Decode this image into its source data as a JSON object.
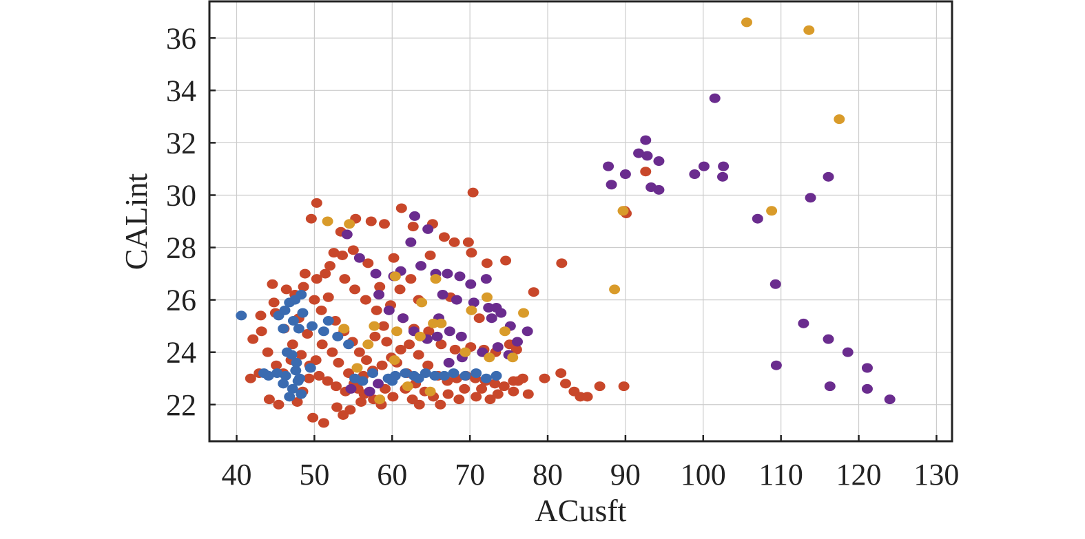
{
  "chart_data": {
    "type": "scatter",
    "title": "",
    "xlabel": "ACusft",
    "ylabel": "CALint",
    "xlim": [
      36.5,
      132
    ],
    "ylim": [
      20.6,
      37.4
    ],
    "xticks": [
      40,
      50,
      60,
      70,
      80,
      90,
      100,
      110,
      120,
      130
    ],
    "yticks": [
      22,
      24,
      26,
      28,
      30,
      32,
      34,
      36
    ],
    "xtick_labels": [
      "40",
      "50",
      "60",
      "70",
      "80",
      "90",
      "100",
      "110",
      "120",
      "130"
    ],
    "ytick_labels": [
      "22",
      "24",
      "26",
      "28",
      "30",
      "32",
      "34",
      "36"
    ],
    "grid": true,
    "legend": "none",
    "series": [
      {
        "color": "#C8472A",
        "points": [
          [
            50.3,
            29.7
          ],
          [
            49.6,
            29.1
          ],
          [
            55.3,
            29.1
          ],
          [
            53.4,
            28.6
          ],
          [
            57.3,
            29.0
          ],
          [
            59.0,
            28.9
          ],
          [
            61.2,
            29.5
          ],
          [
            62.7,
            28.8
          ],
          [
            65.2,
            28.9
          ],
          [
            66.7,
            28.4
          ],
          [
            68.0,
            28.2
          ],
          [
            69.8,
            28.2
          ],
          [
            70.2,
            27.8
          ],
          [
            70.4,
            30.1
          ],
          [
            72.2,
            27.4
          ],
          [
            74.6,
            27.5
          ],
          [
            81.8,
            27.4
          ],
          [
            78.2,
            26.3
          ],
          [
            60.2,
            27.6
          ],
          [
            62.4,
            26.8
          ],
          [
            64.9,
            27.7
          ],
          [
            61.0,
            26.4
          ],
          [
            63.4,
            26.0
          ],
          [
            67.5,
            26.1
          ],
          [
            71.2,
            25.3
          ],
          [
            44.6,
            26.6
          ],
          [
            45.0,
            25.5
          ],
          [
            43.1,
            25.4
          ],
          [
            42.1,
            24.5
          ],
          [
            41.8,
            23.0
          ],
          [
            42.9,
            23.2
          ],
          [
            44.2,
            22.2
          ],
          [
            45.4,
            22.0
          ],
          [
            49.8,
            21.5
          ],
          [
            51.2,
            21.3
          ],
          [
            53.7,
            21.6
          ],
          [
            56.4,
            22.4
          ],
          [
            59.1,
            22.6
          ],
          [
            61.7,
            22.6
          ],
          [
            63.5,
            22.0
          ],
          [
            65.3,
            22.3
          ],
          [
            67.2,
            22.4
          ],
          [
            69.3,
            22.6
          ],
          [
            71.5,
            22.6
          ],
          [
            73.6,
            22.4
          ],
          [
            75.6,
            22.5
          ],
          [
            77.5,
            22.4
          ],
          [
            76.2,
            22.9
          ],
          [
            79.6,
            23.0
          ],
          [
            81.7,
            23.2
          ],
          [
            82.3,
            22.8
          ],
          [
            83.4,
            22.5
          ],
          [
            84.2,
            22.3
          ],
          [
            85.1,
            22.3
          ],
          [
            86.7,
            22.7
          ],
          [
            89.8,
            22.7
          ],
          [
            89.9,
            29.4
          ],
          [
            90.1,
            29.3
          ],
          [
            92.6,
            30.9
          ],
          [
            47.5,
            26.2
          ],
          [
            48.8,
            27.0
          ],
          [
            50.3,
            26.8
          ],
          [
            52.0,
            27.3
          ],
          [
            53.6,
            27.7
          ],
          [
            55.0,
            27.9
          ],
          [
            56.9,
            27.4
          ],
          [
            58.4,
            26.5
          ],
          [
            59.8,
            25.8
          ],
          [
            61.4,
            25.3
          ],
          [
            62.8,
            24.9
          ],
          [
            64.7,
            24.8
          ],
          [
            66.3,
            24.3
          ],
          [
            68.1,
            24.1
          ],
          [
            70.1,
            24.2
          ],
          [
            71.8,
            24.1
          ],
          [
            73.3,
            24.0
          ],
          [
            75.1,
            24.3
          ],
          [
            76.0,
            24.1
          ],
          [
            46.1,
            24.9
          ],
          [
            47.2,
            24.3
          ],
          [
            48.3,
            23.9
          ],
          [
            49.4,
            23.5
          ],
          [
            50.6,
            23.1
          ],
          [
            51.7,
            22.9
          ],
          [
            52.8,
            22.7
          ],
          [
            54.0,
            22.5
          ],
          [
            55.1,
            22.8
          ],
          [
            56.3,
            23.1
          ],
          [
            57.5,
            23.3
          ],
          [
            58.7,
            23.5
          ],
          [
            59.9,
            23.8
          ],
          [
            61.1,
            24.1
          ],
          [
            62.2,
            24.3
          ],
          [
            63.4,
            23.9
          ],
          [
            64.6,
            23.5
          ],
          [
            65.9,
            23.1
          ],
          [
            67.1,
            22.9
          ],
          [
            68.3,
            23.0
          ],
          [
            69.5,
            23.1
          ],
          [
            70.7,
            23.0
          ],
          [
            72.0,
            22.9
          ],
          [
            73.2,
            22.8
          ],
          [
            74.4,
            22.7
          ],
          [
            75.6,
            22.9
          ],
          [
            76.8,
            23.0
          ],
          [
            50.9,
            25.6
          ],
          [
            51.8,
            26.1
          ],
          [
            52.7,
            25.2
          ],
          [
            53.8,
            24.8
          ],
          [
            54.9,
            24.4
          ],
          [
            55.8,
            24.0
          ],
          [
            56.7,
            23.7
          ],
          [
            57.8,
            24.6
          ],
          [
            58.9,
            25.0
          ],
          [
            49.1,
            24.7
          ],
          [
            48.0,
            25.3
          ],
          [
            47.0,
            23.7
          ],
          [
            46.0,
            23.2
          ],
          [
            45.1,
            23.5
          ],
          [
            44.0,
            24.0
          ],
          [
            43.2,
            24.8
          ],
          [
            44.8,
            25.9
          ],
          [
            46.4,
            26.4
          ],
          [
            48.6,
            26.5
          ],
          [
            50.0,
            26.0
          ],
          [
            51.4,
            27.0
          ],
          [
            52.5,
            27.8
          ],
          [
            53.9,
            26.8
          ],
          [
            55.2,
            26.4
          ],
          [
            56.6,
            26.0
          ],
          [
            58.0,
            25.6
          ],
          [
            59.3,
            24.4
          ],
          [
            60.6,
            23.6
          ],
          [
            61.9,
            23.2
          ],
          [
            63.0,
            22.8
          ],
          [
            64.2,
            22.5
          ],
          [
            52.3,
            24.0
          ],
          [
            53.1,
            23.6
          ],
          [
            54.4,
            23.2
          ],
          [
            55.6,
            22.6
          ],
          [
            51.0,
            24.3
          ],
          [
            50.2,
            23.7
          ],
          [
            49.3,
            23.0
          ],
          [
            48.5,
            22.5
          ],
          [
            47.8,
            22.1
          ],
          [
            52.9,
            21.9
          ],
          [
            54.6,
            21.8
          ],
          [
            56.0,
            22.1
          ],
          [
            57.6,
            22.2
          ],
          [
            58.6,
            22.0
          ],
          [
            60.1,
            22.3
          ],
          [
            62.6,
            22.2
          ],
          [
            66.2,
            22.0
          ],
          [
            68.6,
            22.2
          ],
          [
            70.8,
            22.3
          ],
          [
            72.6,
            22.2
          ]
        ]
      },
      {
        "color": "#6A2C8E",
        "points": [
          [
            101.5,
            33.7
          ],
          [
            92.6,
            32.1
          ],
          [
            91.7,
            31.6
          ],
          [
            92.8,
            31.5
          ],
          [
            87.8,
            31.1
          ],
          [
            94.3,
            31.3
          ],
          [
            90.0,
            30.8
          ],
          [
            100.1,
            31.1
          ],
          [
            102.6,
            31.1
          ],
          [
            98.9,
            30.8
          ],
          [
            102.5,
            30.7
          ],
          [
            116.1,
            30.7
          ],
          [
            88.2,
            30.4
          ],
          [
            93.3,
            30.3
          ],
          [
            94.3,
            30.2
          ],
          [
            113.8,
            29.9
          ],
          [
            107.0,
            29.1
          ],
          [
            109.3,
            26.6
          ],
          [
            112.9,
            25.1
          ],
          [
            116.1,
            24.5
          ],
          [
            118.6,
            24.0
          ],
          [
            109.4,
            23.5
          ],
          [
            121.1,
            23.4
          ],
          [
            116.3,
            22.7
          ],
          [
            121.1,
            22.6
          ],
          [
            124.0,
            22.2
          ],
          [
            62.9,
            29.2
          ],
          [
            64.6,
            28.7
          ],
          [
            62.4,
            28.2
          ],
          [
            54.2,
            28.5
          ],
          [
            55.8,
            27.6
          ],
          [
            57.9,
            27.0
          ],
          [
            61.1,
            27.1
          ],
          [
            63.7,
            27.3
          ],
          [
            65.6,
            27.0
          ],
          [
            67.1,
            27.0
          ],
          [
            68.7,
            26.9
          ],
          [
            70.1,
            26.6
          ],
          [
            72.1,
            26.8
          ],
          [
            66.5,
            26.2
          ],
          [
            68.3,
            26.0
          ],
          [
            70.5,
            25.9
          ],
          [
            72.4,
            25.7
          ],
          [
            73.4,
            25.7
          ],
          [
            74.0,
            25.5
          ],
          [
            75.2,
            25.0
          ],
          [
            77.4,
            24.8
          ],
          [
            76.1,
            24.4
          ],
          [
            73.6,
            24.2
          ],
          [
            71.6,
            24.0
          ],
          [
            69.0,
            23.8
          ],
          [
            67.3,
            23.6
          ],
          [
            64.5,
            24.5
          ],
          [
            62.8,
            24.8
          ],
          [
            61.4,
            25.3
          ],
          [
            65.8,
            24.6
          ],
          [
            58.3,
            26.2
          ],
          [
            59.6,
            25.6
          ],
          [
            60.2,
            26.9
          ],
          [
            66.0,
            25.3
          ],
          [
            67.4,
            24.8
          ],
          [
            68.9,
            24.6
          ],
          [
            72.8,
            25.3
          ],
          [
            75.0,
            23.9
          ],
          [
            54.7,
            22.6
          ],
          [
            57.1,
            22.5
          ],
          [
            58.2,
            22.8
          ]
        ]
      },
      {
        "color": "#D99B2A",
        "points": [
          [
            105.6,
            36.6
          ],
          [
            113.6,
            36.3
          ],
          [
            117.5,
            32.9
          ],
          [
            108.8,
            29.4
          ],
          [
            88.6,
            26.4
          ],
          [
            89.7,
            29.4
          ],
          [
            51.7,
            29.0
          ],
          [
            54.5,
            28.9
          ],
          [
            60.4,
            26.9
          ],
          [
            65.6,
            26.8
          ],
          [
            63.8,
            25.9
          ],
          [
            65.3,
            25.1
          ],
          [
            66.3,
            25.1
          ],
          [
            72.2,
            26.1
          ],
          [
            70.2,
            25.6
          ],
          [
            76.9,
            25.5
          ],
          [
            74.5,
            24.8
          ],
          [
            75.5,
            23.8
          ],
          [
            72.5,
            23.8
          ],
          [
            69.4,
            24.0
          ],
          [
            57.7,
            25.0
          ],
          [
            60.6,
            24.8
          ],
          [
            63.6,
            24.6
          ],
          [
            58.4,
            22.2
          ],
          [
            62.0,
            22.7
          ],
          [
            64.9,
            22.5
          ],
          [
            55.5,
            23.4
          ],
          [
            56.9,
            24.3
          ],
          [
            53.8,
            24.9
          ],
          [
            60.3,
            23.7
          ]
        ]
      },
      {
        "color": "#3A6BB0",
        "points": [
          [
            40.6,
            25.4
          ],
          [
            45.4,
            25.4
          ],
          [
            46.2,
            25.6
          ],
          [
            46.8,
            25.9
          ],
          [
            47.3,
            25.2
          ],
          [
            48.0,
            24.9
          ],
          [
            48.5,
            25.5
          ],
          [
            46.0,
            24.9
          ],
          [
            47.5,
            26.0
          ],
          [
            48.3,
            26.2
          ],
          [
            49.7,
            25.0
          ],
          [
            51.2,
            24.8
          ],
          [
            53.0,
            24.6
          ],
          [
            54.4,
            24.3
          ],
          [
            51.8,
            25.2
          ],
          [
            46.5,
            24.0
          ],
          [
            47.1,
            23.9
          ],
          [
            47.6,
            23.3
          ],
          [
            46.3,
            23.1
          ],
          [
            45.2,
            23.2
          ],
          [
            44.1,
            23.1
          ],
          [
            43.5,
            23.2
          ],
          [
            47.9,
            22.9
          ],
          [
            47.2,
            22.6
          ],
          [
            48.3,
            22.4
          ],
          [
            46.8,
            22.3
          ],
          [
            47.7,
            23.6
          ],
          [
            48.1,
            23.0
          ],
          [
            46.0,
            22.8
          ],
          [
            49.5,
            23.4
          ],
          [
            55.2,
            23.0
          ],
          [
            56.2,
            22.9
          ],
          [
            57.5,
            23.2
          ],
          [
            59.5,
            23.0
          ],
          [
            60.4,
            23.1
          ],
          [
            61.7,
            23.2
          ],
          [
            62.8,
            23.1
          ],
          [
            64.3,
            23.2
          ],
          [
            65.5,
            23.1
          ],
          [
            66.7,
            23.1
          ],
          [
            67.9,
            23.2
          ],
          [
            69.4,
            23.1
          ],
          [
            70.8,
            23.2
          ],
          [
            72.1,
            23.0
          ],
          [
            73.4,
            23.1
          ],
          [
            60.0,
            22.9
          ],
          [
            63.4,
            23.0
          ]
        ]
      }
    ]
  }
}
